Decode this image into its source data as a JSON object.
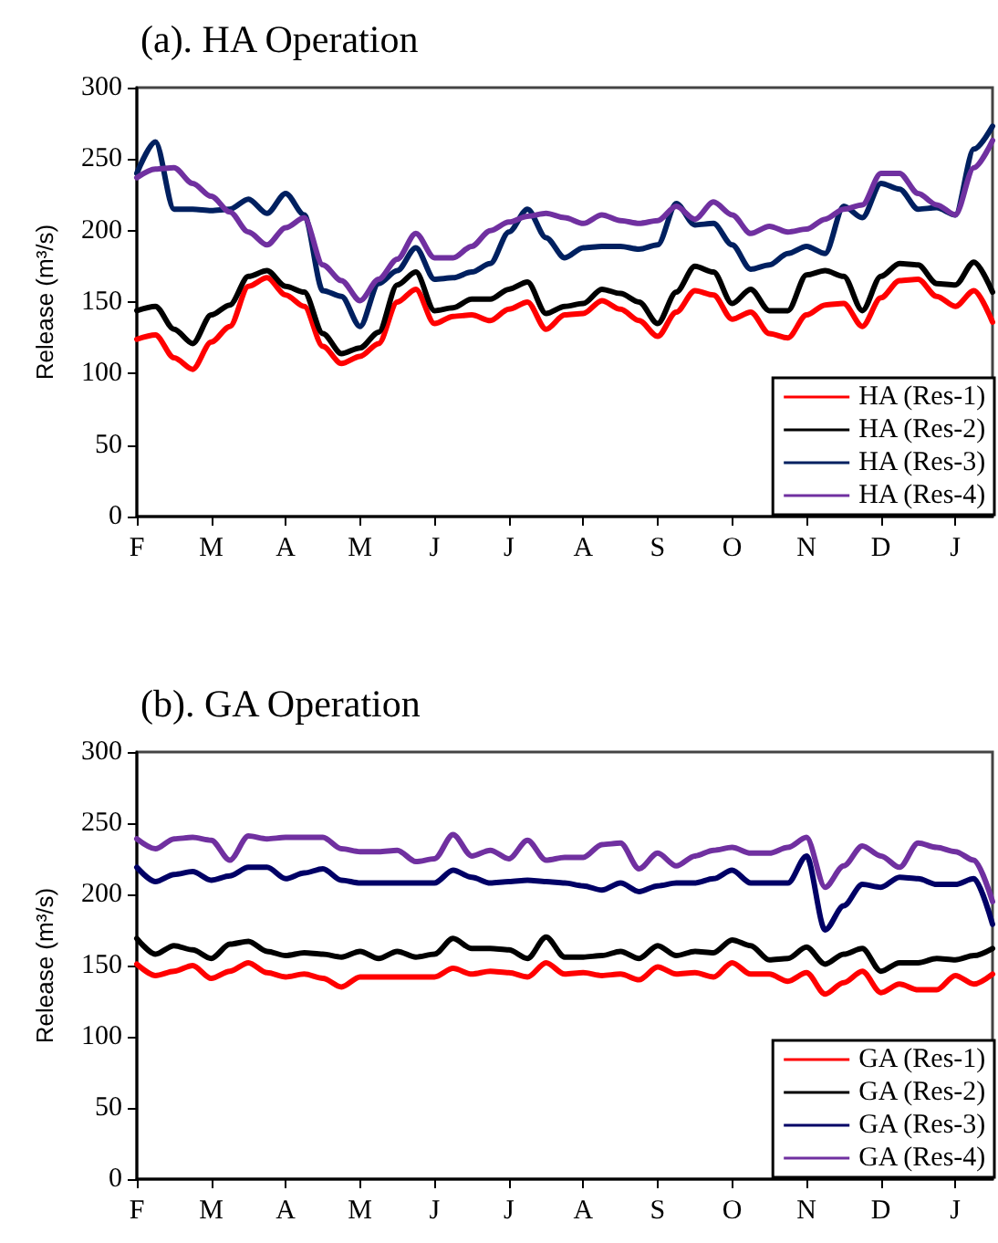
{
  "chart_data": [
    {
      "type": "line",
      "title": "(a). HA Operation",
      "ylabel": "Release (m³/s)",
      "categories": [
        "F",
        null,
        null,
        null,
        "M",
        null,
        null,
        null,
        "A",
        null,
        null,
        null,
        "M",
        null,
        null,
        null,
        "J",
        null,
        null,
        null,
        "J",
        null,
        null,
        null,
        "A",
        null,
        null,
        null,
        "S",
        null,
        null,
        null,
        "O",
        null,
        null,
        null,
        "N",
        null,
        null,
        null,
        "D",
        null,
        null,
        null,
        "J",
        null,
        null
      ],
      "ylim": [
        0,
        300
      ],
      "yticks": [
        0,
        50,
        100,
        150,
        200,
        250,
        300
      ],
      "grid": false,
      "legend": "bottom right",
      "marker": "none",
      "line_style": "solid",
      "series": [
        {
          "name": "HA (Res-1)",
          "color": "#ff0000",
          "values": [
            124,
            127,
            111,
            103,
            122,
            133,
            161,
            167,
            155,
            147,
            119,
            107,
            112,
            121,
            150,
            159,
            135,
            140,
            141,
            137,
            145,
            150,
            131,
            141,
            142,
            151,
            145,
            137,
            126,
            143,
            158,
            155,
            138,
            143,
            128,
            125,
            141,
            148,
            149,
            133,
            153,
            165,
            166,
            154,
            147,
            158,
            136
          ]
        },
        {
          "name": "HA (Res-2)",
          "color": "#000000",
          "values": [
            144,
            147,
            131,
            121,
            141,
            148,
            168,
            172,
            161,
            157,
            128,
            114,
            118,
            129,
            162,
            171,
            144,
            146,
            152,
            152,
            159,
            164,
            142,
            147,
            149,
            159,
            156,
            150,
            135,
            157,
            175,
            171,
            149,
            159,
            144,
            144,
            169,
            172,
            168,
            144,
            168,
            177,
            176,
            163,
            162,
            178,
            157
          ]
        },
        {
          "name": "HA (Res-3)",
          "color": "#002060",
          "values": [
            240,
            262,
            215,
            215,
            214,
            215,
            222,
            212,
            226,
            211,
            158,
            154,
            133,
            163,
            172,
            188,
            166,
            167,
            171,
            177,
            199,
            215,
            195,
            181,
            188,
            189,
            189,
            187,
            190,
            219,
            204,
            205,
            190,
            173,
            176,
            184,
            189,
            184,
            217,
            209,
            233,
            229,
            215,
            216,
            211,
            257,
            273
          ]
        },
        {
          "name": "HA (Res-4)",
          "color": "#7030a0",
          "values": [
            237,
            243,
            244,
            233,
            224,
            213,
            199,
            190,
            202,
            209,
            176,
            165,
            151,
            166,
            180,
            198,
            181,
            181,
            189,
            200,
            206,
            210,
            212,
            209,
            205,
            211,
            207,
            205,
            207,
            217,
            208,
            220,
            211,
            198,
            203,
            199,
            201,
            208,
            215,
            218,
            240,
            240,
            226,
            218,
            211,
            244,
            263
          ]
        }
      ]
    },
    {
      "type": "line",
      "title": "(b). GA Operation",
      "ylabel": "Release (m³/s)",
      "categories": [
        "F",
        null,
        null,
        null,
        "M",
        null,
        null,
        null,
        "A",
        null,
        null,
        null,
        "M",
        null,
        null,
        null,
        "J",
        null,
        null,
        null,
        "J",
        null,
        null,
        null,
        "A",
        null,
        null,
        null,
        "S",
        null,
        null,
        null,
        "O",
        null,
        null,
        null,
        "N",
        null,
        null,
        null,
        "D",
        null,
        null,
        null,
        "J",
        null,
        null
      ],
      "ylim": [
        0,
        300
      ],
      "yticks": [
        0,
        50,
        100,
        150,
        200,
        250,
        300
      ],
      "grid": false,
      "legend": "bottom right",
      "marker": "none",
      "line_style": "solid",
      "series": [
        {
          "name": "GA (Res-1)",
          "color": "#ff0000",
          "values": [
            151,
            143,
            146,
            150,
            141,
            146,
            152,
            145,
            142,
            144,
            141,
            135,
            142,
            142,
            142,
            142,
            142,
            148,
            144,
            146,
            145,
            142,
            152,
            144,
            145,
            143,
            144,
            140,
            149,
            144,
            145,
            142,
            152,
            144,
            144,
            139,
            145,
            130,
            138,
            146,
            131,
            137,
            133,
            133,
            143,
            137,
            144
          ]
        },
        {
          "name": "GA (Res-2)",
          "color": "#000000",
          "values": [
            169,
            158,
            164,
            161,
            155,
            165,
            167,
            160,
            157,
            159,
            158,
            156,
            160,
            155,
            160,
            156,
            158,
            169,
            162,
            162,
            161,
            155,
            170,
            156,
            156,
            157,
            160,
            155,
            164,
            157,
            160,
            159,
            168,
            164,
            154,
            155,
            163,
            151,
            158,
            162,
            146,
            152,
            152,
            155,
            154,
            157,
            162
          ]
        },
        {
          "name": "GA (Res-3)",
          "color": "#000066",
          "values": [
            219,
            209,
            214,
            216,
            210,
            213,
            219,
            219,
            211,
            215,
            218,
            210,
            208,
            208,
            208,
            208,
            208,
            217,
            212,
            208,
            209,
            210,
            209,
            208,
            206,
            203,
            208,
            202,
            206,
            208,
            208,
            211,
            217,
            208,
            208,
            208,
            227,
            175,
            192,
            207,
            205,
            212,
            211,
            207,
            207,
            211,
            179
          ]
        },
        {
          "name": "GA (Res-4)",
          "color": "#7030a0",
          "values": [
            239,
            232,
            239,
            240,
            238,
            224,
            241,
            239,
            240,
            240,
            240,
            232,
            230,
            230,
            231,
            223,
            225,
            242,
            227,
            231,
            225,
            238,
            224,
            226,
            226,
            235,
            236,
            218,
            229,
            220,
            227,
            231,
            233,
            229,
            229,
            233,
            240,
            205,
            220,
            234,
            227,
            219,
            236,
            233,
            230,
            224,
            195
          ]
        }
      ]
    }
  ]
}
